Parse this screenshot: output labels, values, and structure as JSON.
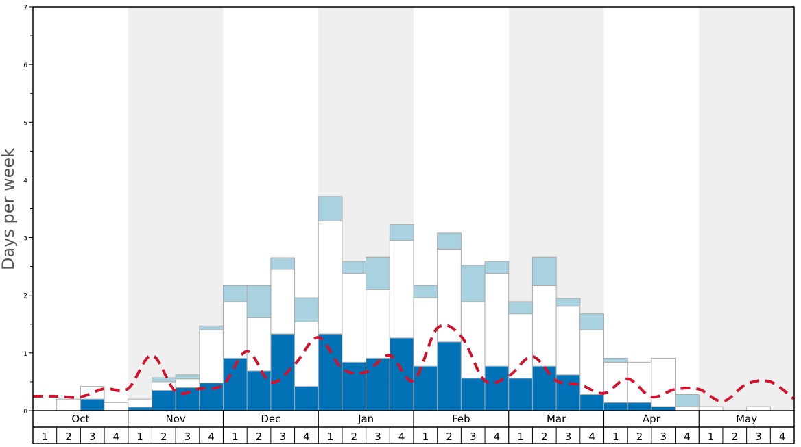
{
  "chart_data": {
    "type": "bar",
    "ylabel": "Days per week",
    "ylim": [
      0,
      7
    ],
    "y_ticks": [
      "0",
      "1",
      "2",
      "3",
      "4",
      "5",
      "6",
      "7"
    ],
    "months": [
      "Oct",
      "Nov",
      "Dec",
      "Jan",
      "Feb",
      "Mar",
      "Apr",
      "May"
    ],
    "weeks": [
      "1",
      "2",
      "3",
      "4"
    ],
    "stacked": true,
    "grid": false,
    "series": [
      {
        "key": "dark",
        "color": "#0072b5",
        "values": [
          0,
          0,
          0.2,
          0,
          0.06,
          0.35,
          0.4,
          0.48,
          0.91,
          0.69,
          1.33,
          0.42,
          1.33,
          0.84,
          0.91,
          1.26,
          0.77,
          1.19,
          0.56,
          0.77,
          0.56,
          0.77,
          0.62,
          0.28,
          0.14,
          0.14,
          0.07,
          0,
          0,
          0,
          0,
          0
        ]
      },
      {
        "key": "white",
        "color": "#ffffff",
        "values": [
          0,
          0.2,
          0.22,
          0.14,
          0.14,
          0.15,
          0.15,
          0.92,
          0.98,
          0.92,
          1.12,
          1.12,
          1.96,
          1.54,
          1.19,
          1.69,
          1.19,
          1.61,
          1.33,
          1.61,
          1.12,
          1.4,
          1.19,
          1.12,
          0.7,
          0.7,
          0.84,
          0.07,
          0.07,
          0,
          0.07,
          0
        ]
      },
      {
        "key": "light",
        "color": "#a9d2e1",
        "values": [
          0,
          0,
          0,
          0,
          0,
          0.07,
          0.07,
          0.07,
          0.28,
          0.56,
          0.2,
          0.42,
          0.42,
          0.21,
          0.56,
          0.28,
          0.21,
          0.28,
          0.63,
          0.21,
          0.21,
          0.49,
          0.14,
          0.28,
          0.07,
          0,
          0,
          0.21,
          0,
          0,
          0,
          0
        ]
      }
    ],
    "line": {
      "color": "#d2112b",
      "style": "dashed",
      "values": [
        0.25,
        0.25,
        0.24,
        0.38,
        0.38,
        0.96,
        0.33,
        0.38,
        0.45,
        1.03,
        0.49,
        0.8,
        1.27,
        0.73,
        0.67,
        0.96,
        0.52,
        1.43,
        1.29,
        0.52,
        0.6,
        0.94,
        0.52,
        0.45,
        0.3,
        0.55,
        0.24,
        0.37,
        0.37,
        0.16,
        0.46,
        0.5,
        0.2
      ]
    },
    "colors": {
      "band_shade": "#efeff0",
      "axis": "#000000",
      "bar_border": "#aaaaaa",
      "label": "#555555"
    }
  }
}
